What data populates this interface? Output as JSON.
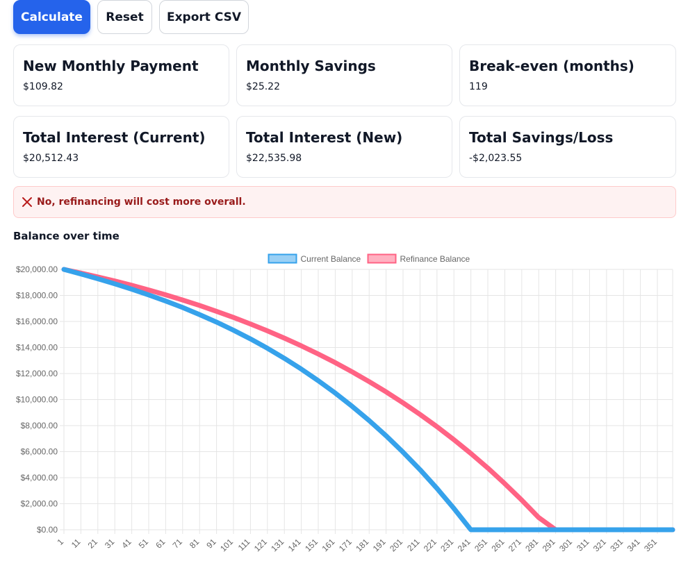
{
  "toolbar": {
    "calculate_label": "Calculate",
    "reset_label": "Reset",
    "export_label": "Export CSV"
  },
  "cards": [
    {
      "title": "New Monthly Payment",
      "value": "$109.82"
    },
    {
      "title": "Monthly Savings",
      "value": "$25.22"
    },
    {
      "title": "Break-even (months)",
      "value": "119"
    },
    {
      "title": "Total Interest (Current)",
      "value": "$20,512.43"
    },
    {
      "title": "Total Interest (New)",
      "value": "$22,535.98"
    },
    {
      "title": "Total Savings/Loss",
      "value": "-$2,023.55"
    }
  ],
  "alert": {
    "icon": "x-icon",
    "message": "No, refinancing will cost more overall.",
    "color": "#991b1b"
  },
  "chart_title": "Balance over time",
  "chart_data": {
    "type": "line",
    "xlabel": "",
    "ylabel": "",
    "ylim": [
      0,
      20000
    ],
    "y_ticks": [
      "$0.00",
      "$2,000.00",
      "$4,000.00",
      "$6,000.00",
      "$8,000.00",
      "$10,000.00",
      "$12,000.00",
      "$14,000.00",
      "$16,000.00",
      "$18,000.00",
      "$20,000.00"
    ],
    "x_ticks": [
      1,
      11,
      21,
      31,
      41,
      51,
      61,
      71,
      81,
      91,
      101,
      111,
      121,
      131,
      141,
      151,
      161,
      171,
      181,
      191,
      201,
      211,
      221,
      231,
      241,
      251,
      261,
      271,
      281,
      291,
      301,
      311,
      321,
      331,
      341,
      351
    ],
    "xlim": [
      1,
      360
    ],
    "grid": true,
    "legend_position": "top",
    "series": [
      {
        "name": "Current Balance",
        "color": "#36a2eb",
        "fill": "#9ad0f5",
        "x": [
          1,
          11,
          21,
          31,
          41,
          51,
          61,
          71,
          81,
          91,
          101,
          111,
          121,
          131,
          141,
          151,
          161,
          171,
          181,
          191,
          201,
          211,
          221,
          231,
          241,
          251,
          261,
          271,
          281,
          291,
          301,
          311,
          321,
          331,
          341,
          351,
          360
        ],
        "values": [
          20000,
          19650,
          19280,
          18890,
          18480,
          18040,
          17570,
          17070,
          16530,
          15950,
          15330,
          14660,
          13940,
          13170,
          12340,
          11450,
          10500,
          9480,
          8390,
          7220,
          5960,
          4620,
          3180,
          1640,
          0,
          0,
          0,
          0,
          0,
          0,
          0,
          0,
          0,
          0,
          0,
          0,
          0
        ]
      },
      {
        "name": "Refinance Balance",
        "color": "#ff6384",
        "fill": "#ffb1c1",
        "x": [
          1,
          11,
          21,
          31,
          41,
          51,
          61,
          71,
          81,
          91,
          101,
          111,
          121,
          131,
          141,
          151,
          161,
          171,
          181,
          191,
          201,
          211,
          221,
          231,
          241,
          251,
          261,
          271,
          281,
          291,
          301,
          311,
          321,
          331,
          341,
          351,
          360
        ],
        "values": [
          20000,
          19720,
          19420,
          19110,
          18780,
          18420,
          18050,
          17650,
          17230,
          16780,
          16310,
          15810,
          15280,
          14720,
          14130,
          13500,
          12840,
          12130,
          11380,
          10590,
          9750,
          8860,
          7920,
          6920,
          5860,
          4740,
          3540,
          2280,
          940,
          0,
          0,
          0,
          0,
          0,
          0,
          0,
          0
        ]
      }
    ]
  }
}
